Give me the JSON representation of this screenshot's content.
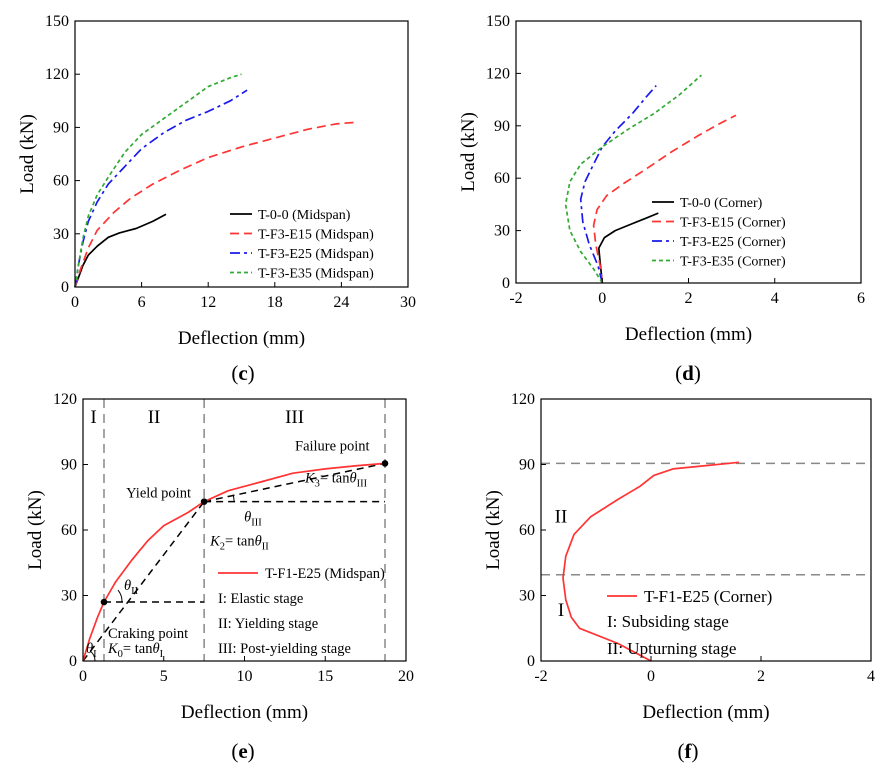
{
  "chart_data": [
    {
      "panel": "c",
      "type": "line",
      "xlabel": "Deflection (mm)",
      "ylabel": "Load (kN)",
      "xlim": [
        0,
        30
      ],
      "ylim": [
        0,
        150
      ],
      "xticks": [
        0,
        6,
        12,
        18,
        24,
        30
      ],
      "yticks": [
        0,
        30,
        60,
        90,
        120,
        150
      ],
      "legend_position": "bottom-right",
      "series": [
        {
          "name": "T-0-0 (Midspan)",
          "color": "#000000",
          "dash": "solid",
          "points": [
            [
              0,
              0
            ],
            [
              0.3,
              5
            ],
            [
              0.7,
              12
            ],
            [
              1.2,
              18
            ],
            [
              2,
              23
            ],
            [
              3,
              28
            ],
            [
              4,
              30.5
            ],
            [
              5.5,
              33
            ],
            [
              7,
              37
            ],
            [
              8.2,
              41
            ]
          ]
        },
        {
          "name": "T-F3-E15 (Midspan)",
          "color": "#ff3333",
          "dash": "longdash",
          "points": [
            [
              0,
              0
            ],
            [
              0.5,
              10
            ],
            [
              1.2,
              22
            ],
            [
              2,
              32
            ],
            [
              3.5,
              42
            ],
            [
              5,
              50
            ],
            [
              7,
              58
            ],
            [
              9.5,
              66
            ],
            [
              12,
              73
            ],
            [
              15,
              79
            ],
            [
              18,
              84
            ],
            [
              21,
              89
            ],
            [
              23.5,
              92
            ],
            [
              25.5,
              93
            ]
          ]
        },
        {
          "name": "T-F3-E25 (Midspan)",
          "color": "#1a1aee",
          "dash": "dashdot",
          "points": [
            [
              0,
              0
            ],
            [
              0.3,
              12
            ],
            [
              0.7,
              25
            ],
            [
              1.2,
              37
            ],
            [
              2,
              48
            ],
            [
              3,
              58
            ],
            [
              4.5,
              68
            ],
            [
              6,
              78
            ],
            [
              8,
              87
            ],
            [
              10,
              94
            ],
            [
              12,
              99
            ],
            [
              14,
              105
            ],
            [
              15.5,
              111
            ]
          ]
        },
        {
          "name": "T-F3-E35 (Midspan)",
          "color": "#33aa33",
          "dash": "dotted",
          "points": [
            [
              0,
              0
            ],
            [
              0.3,
              12
            ],
            [
              0.7,
              27
            ],
            [
              1.2,
              40
            ],
            [
              2,
              52
            ],
            [
              3,
              62
            ],
            [
              4.5,
              76
            ],
            [
              6,
              86
            ],
            [
              8,
              95
            ],
            [
              10,
              104
            ],
            [
              12,
              113
            ],
            [
              14,
              118
            ],
            [
              15,
              120
            ]
          ]
        }
      ]
    },
    {
      "panel": "d",
      "type": "line",
      "xlabel": "Deflection (mm)",
      "ylabel": "Load (kN)",
      "xlim": [
        -2,
        6
      ],
      "ylim": [
        0,
        150
      ],
      "xticks": [
        -2,
        0,
        2,
        4,
        6
      ],
      "yticks": [
        0,
        30,
        60,
        90,
        120,
        150
      ],
      "legend_position": "bottom-right",
      "series": [
        {
          "name": "T-0-0 (Corner)",
          "color": "#000000",
          "dash": "solid",
          "points": [
            [
              0,
              0
            ],
            [
              -0.02,
              5
            ],
            [
              -0.05,
              12
            ],
            [
              -0.08,
              20
            ],
            [
              0.05,
              26
            ],
            [
              0.3,
              30
            ],
            [
              0.7,
              34
            ],
            [
              1,
              37
            ],
            [
              1.3,
              40
            ]
          ]
        },
        {
          "name": "T-F3-E15 (Corner)",
          "color": "#ff3333",
          "dash": "longdash",
          "points": [
            [
              0,
              0
            ],
            [
              -0.05,
              10
            ],
            [
              -0.15,
              22
            ],
            [
              -0.2,
              33
            ],
            [
              -0.12,
              42
            ],
            [
              0.1,
              50
            ],
            [
              0.5,
              57
            ],
            [
              1,
              65
            ],
            [
              1.6,
              75
            ],
            [
              2.2,
              84
            ],
            [
              2.7,
              91
            ],
            [
              3.1,
              96
            ]
          ]
        },
        {
          "name": "T-F3-E25 (Corner)",
          "color": "#1a1aee",
          "dash": "dashdot",
          "points": [
            [
              0,
              0
            ],
            [
              -0.1,
              10
            ],
            [
              -0.3,
              22
            ],
            [
              -0.45,
              35
            ],
            [
              -0.5,
              48
            ],
            [
              -0.4,
              58
            ],
            [
              -0.2,
              68
            ],
            [
              0,
              78
            ],
            [
              0.3,
              87
            ],
            [
              0.7,
              97
            ],
            [
              1,
              106
            ],
            [
              1.25,
              113
            ]
          ]
        },
        {
          "name": "T-F3-E35 (Corner)",
          "color": "#33aa33",
          "dash": "dotted",
          "points": [
            [
              0,
              0
            ],
            [
              -0.2,
              8
            ],
            [
              -0.5,
              18
            ],
            [
              -0.75,
              30
            ],
            [
              -0.85,
              45
            ],
            [
              -0.75,
              58
            ],
            [
              -0.5,
              68
            ],
            [
              0,
              78
            ],
            [
              0.6,
              88
            ],
            [
              1.2,
              97
            ],
            [
              1.8,
              108
            ],
            [
              2.3,
              119
            ]
          ]
        }
      ]
    },
    {
      "panel": "e",
      "type": "line",
      "xlabel": "Deflection (mm)",
      "ylabel": "Load (kN)",
      "xlim": [
        0,
        20
      ],
      "ylim": [
        0,
        120
      ],
      "xticks": [
        0,
        5,
        10,
        15,
        20
      ],
      "yticks": [
        0,
        30,
        60,
        90,
        120
      ],
      "legend_position": "bottom-right",
      "stage_labels": [
        "I",
        "II",
        "III"
      ],
      "stage_boundaries_x": [
        1.3,
        7.5,
        18.7
      ],
      "series": [
        {
          "name": "T-F1-E25 (Midspan)",
          "color": "#ff3333",
          "dash": "solid",
          "points": [
            [
              0,
              0
            ],
            [
              0.4,
              10
            ],
            [
              0.9,
              20
            ],
            [
              1.3,
              27
            ],
            [
              2,
              36
            ],
            [
              3,
              46
            ],
            [
              4,
              55
            ],
            [
              5,
              62
            ],
            [
              6.5,
              68
            ],
            [
              7.5,
              73
            ],
            [
              9,
              78
            ],
            [
              11,
              82
            ],
            [
              13,
              86
            ],
            [
              15,
              88
            ],
            [
              17,
              89.5
            ],
            [
              18.7,
              90.5
            ]
          ]
        }
      ],
      "key_points": [
        {
          "label": "Craking point",
          "x": 1.3,
          "y": 27
        },
        {
          "label": "Yield point",
          "x": 7.5,
          "y": 73
        },
        {
          "label": "Failure point",
          "x": 18.7,
          "y": 90.5
        }
      ],
      "stiffness_labels": {
        "k0": [
          "K",
          "0",
          "= tan",
          "θ",
          "I"
        ],
        "k2": [
          "K",
          "2",
          "= tan",
          "θ",
          "II"
        ],
        "k3": [
          "K",
          "3",
          "= tan",
          "θ",
          "III"
        ],
        "theta1": [
          "θ",
          "I"
        ],
        "theta2": [
          "θ",
          "II"
        ],
        "theta3": [
          "θ",
          "III"
        ]
      },
      "legend_notes": [
        "I: Elastic stage",
        "II: Yielding stage",
        "III: Post-yielding stage"
      ]
    },
    {
      "panel": "f",
      "type": "line",
      "xlabel": "Deflection (mm)",
      "ylabel": "Load (kN)",
      "xlim": [
        -2,
        4
      ],
      "ylim": [
        0,
        120
      ],
      "xticks": [
        -2,
        0,
        2,
        4
      ],
      "yticks": [
        0,
        30,
        60,
        90,
        120
      ],
      "legend_position": "bottom-right",
      "hlines_y": [
        39.5,
        90.5
      ],
      "stage_labels": [
        "I",
        "II"
      ],
      "series": [
        {
          "name": "T-F1-E25 (Corner)",
          "color": "#ff3333",
          "dash": "solid",
          "points": [
            [
              0,
              0
            ],
            [
              -0.6,
              8
            ],
            [
              -1.3,
              15
            ],
            [
              -1.45,
              20
            ],
            [
              -1.55,
              28
            ],
            [
              -1.6,
              38
            ],
            [
              -1.55,
              48
            ],
            [
              -1.4,
              58
            ],
            [
              -1.1,
              66
            ],
            [
              -0.6,
              74
            ],
            [
              -0.2,
              80
            ],
            [
              0.05,
              85
            ],
            [
              0.4,
              88
            ],
            [
              1,
              89.5
            ],
            [
              1.6,
              91
            ]
          ]
        }
      ],
      "legend_notes": [
        "I: Subsiding stage",
        "II: Upturning stage"
      ]
    }
  ],
  "panel_labels": [
    "(c)",
    "(d)",
    "(e)",
    "(f)"
  ]
}
